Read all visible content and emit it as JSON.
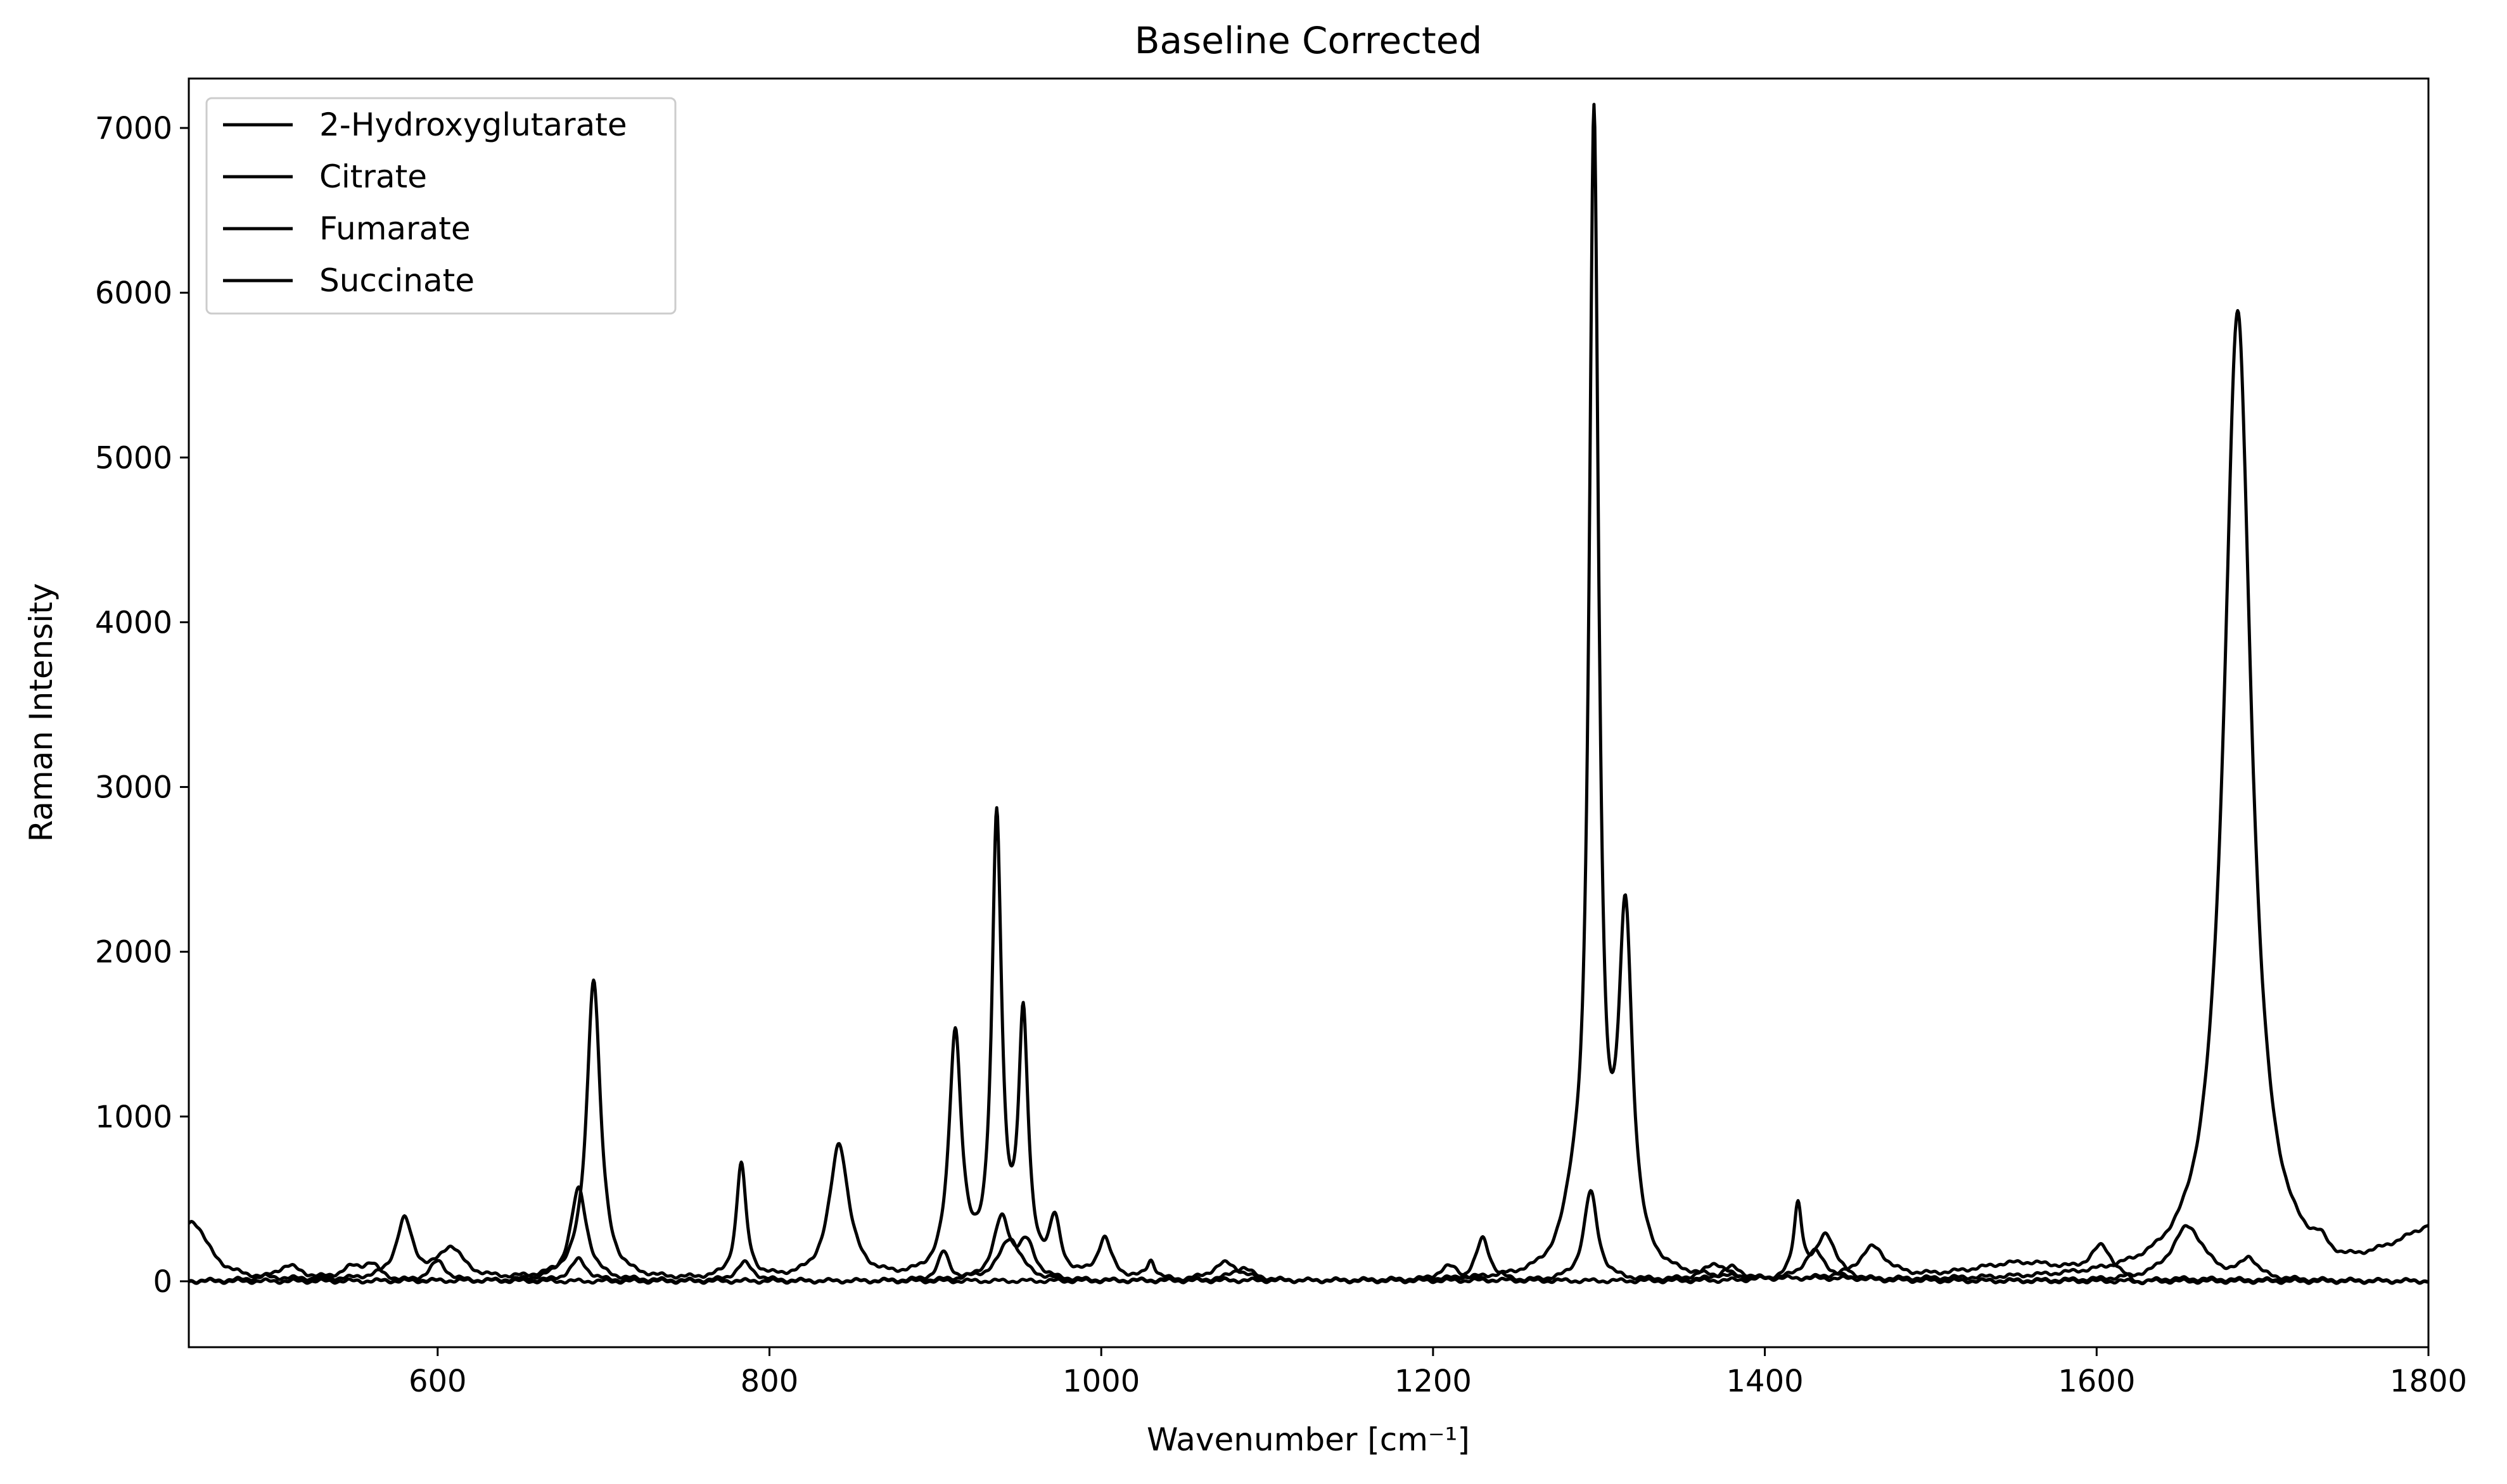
{
  "chart_data": {
    "type": "line",
    "title": "Baseline Corrected",
    "xlabel": "Wavenumber [cm⁻¹]",
    "ylabel": "Raman Intensity",
    "xlim": [
      450,
      1800
    ],
    "ylim": [
      -400,
      7300
    ],
    "xticks": [
      600,
      800,
      1000,
      1200,
      1400,
      1600,
      1800
    ],
    "yticks": [
      0,
      1000,
      2000,
      3000,
      4000,
      5000,
      6000,
      7000
    ],
    "grid": false,
    "legend_position": "top-left",
    "series_color": "#000000",
    "series": [
      {
        "name": "2-Hydroxyglutarate",
        "peaks": [
          [
            452,
            360,
            12
          ],
          [
            580,
            360,
            6
          ],
          [
            608,
            190,
            9
          ],
          [
            694,
            1830,
            5
          ],
          [
            783,
            700,
            3.5
          ],
          [
            842,
            820,
            7
          ],
          [
            912,
            1470,
            4.5
          ],
          [
            937,
            2740,
            3.5
          ],
          [
            953,
            1520,
            3.5
          ],
          [
            972,
            320,
            4
          ],
          [
            1002,
            240,
            5
          ],
          [
            1030,
            110,
            3
          ],
          [
            1230,
            260,
            5
          ],
          [
            1420,
            450,
            3
          ],
          [
            1437,
            280,
            7
          ]
        ]
      },
      {
        "name": "Citrate",
        "peaks": [
          [
            510,
            90,
            10
          ],
          [
            548,
            70,
            8
          ],
          [
            560,
            90,
            6
          ],
          [
            685,
            130,
            6
          ],
          [
            785,
            110,
            6
          ],
          [
            905,
            170,
            4
          ],
          [
            945,
            260,
            8
          ],
          [
            1075,
            110,
            10
          ],
          [
            1210,
            90,
            8
          ],
          [
            1380,
            80,
            8
          ],
          [
            1430,
            180,
            8
          ],
          [
            1655,
            330,
            12
          ],
          [
            1692,
            120,
            6
          ]
        ]
      },
      {
        "name": "Fumarate",
        "peaks": [
          [
            685,
            560,
            6
          ],
          [
            1285,
            300,
            8
          ],
          [
            1297,
            6900,
            3.5
          ],
          [
            1316,
            2100,
            5
          ],
          [
            1685,
            5880,
            10
          ],
          [
            1735,
            80,
            6
          ]
        ],
        "ramp": [
          1740,
          1800,
          300
        ]
      },
      {
        "name": "Succinate",
        "peaks": [
          [
            600,
            120,
            6
          ],
          [
            940,
            370,
            6
          ],
          [
            955,
            210,
            6
          ],
          [
            1085,
            80,
            8
          ],
          [
            1295,
            540,
            5
          ],
          [
            1370,
            100,
            8
          ],
          [
            1465,
            190,
            10
          ],
          [
            1555,
            110,
            40
          ],
          [
            1603,
            180,
            8
          ]
        ],
        "dip": [
          1625,
          -50,
          10
        ]
      }
    ]
  }
}
